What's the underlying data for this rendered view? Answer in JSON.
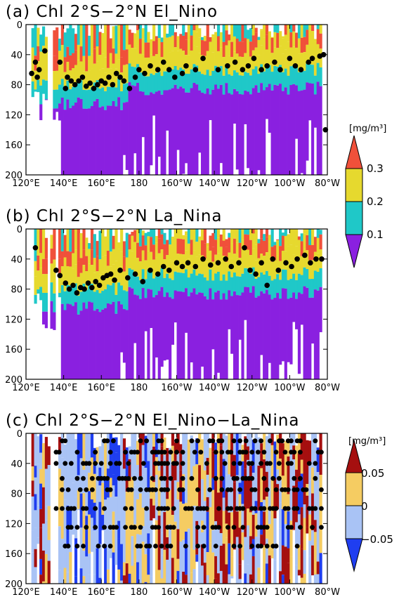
{
  "colors": {
    "panel_ab": {
      "lt_0.1": "#8a20e0",
      "0.1_0.2": "#1fc8c8",
      "0.2_0.3": "#e6d92e",
      "gt_0.3": "#f0503a"
    },
    "panel_c": {
      "lt_-0.05": "#1f3ef0",
      "-0.05_0": "#a9c3f5",
      "0_0.05": "#f5cc62",
      "gt_0.05": "#a50f0f"
    },
    "dots": "#000000"
  },
  "colorbars": [
    {
      "unit": "[mg/m³]",
      "labels": [
        "0.3",
        "0.2",
        "0.1"
      ]
    },
    {
      "unit": "[mg/m³]",
      "labels": [
        "0.05",
        "0",
        "−0.05"
      ]
    }
  ],
  "chart_data": [
    {
      "type": "heatmap",
      "title": "(a)  Chl 2°S−2°N El_Nino",
      "xlabel": "",
      "ylabel": "",
      "xticks": [
        "120°E",
        "140°E",
        "160°E",
        "180",
        "160°W",
        "140°W",
        "120°W",
        "100°W",
        "80°W"
      ],
      "yticks": [
        "0",
        "40",
        "80",
        "120",
        "160",
        "200"
      ],
      "xlim": [
        120,
        280
      ],
      "ylim": [
        200,
        0
      ],
      "levels": [
        0.1,
        0.2,
        0.3
      ],
      "chl_max_depth": [
        [
          123,
          65
        ],
        [
          125,
          50
        ],
        [
          126,
          70
        ],
        [
          127,
          60
        ],
        [
          130,
          35
        ],
        [
          138,
          50
        ],
        [
          141,
          85
        ],
        [
          142,
          70
        ],
        [
          144,
          75
        ],
        [
          146,
          80
        ],
        [
          148,
          75
        ],
        [
          150,
          70
        ],
        [
          152,
          82
        ],
        [
          154,
          78
        ],
        [
          156,
          85
        ],
        [
          158,
          80
        ],
        [
          160,
          75
        ],
        [
          162,
          78
        ],
        [
          164,
          70
        ],
        [
          166,
          80
        ],
        [
          168,
          65
        ],
        [
          170,
          70
        ],
        [
          172,
          75
        ],
        [
          175,
          85
        ],
        [
          178,
          70
        ],
        [
          180,
          60
        ],
        [
          183,
          65
        ],
        [
          186,
          55
        ],
        [
          190,
          60
        ],
        [
          193,
          50
        ],
        [
          196,
          60
        ],
        [
          199,
          70
        ],
        [
          203,
          65
        ],
        [
          205,
          55
        ],
        [
          210,
          60
        ],
        [
          214,
          45
        ],
        [
          222,
          60
        ],
        [
          227,
          55
        ],
        [
          231,
          50
        ],
        [
          235,
          60
        ],
        [
          238,
          55
        ],
        [
          241,
          45
        ],
        [
          245,
          60
        ],
        [
          248,
          55
        ],
        [
          252,
          50
        ],
        [
          255,
          60
        ],
        [
          260,
          45
        ],
        [
          263,
          55
        ],
        [
          266,
          60
        ],
        [
          270,
          50
        ],
        [
          272,
          45
        ],
        [
          276,
          42
        ],
        [
          278,
          40
        ],
        [
          279,
          140
        ]
      ]
    },
    {
      "type": "heatmap",
      "title": "(b)  Chl 2°S−2°N La_Nina",
      "xlabel": "",
      "ylabel": "",
      "xticks": [
        "120°E",
        "140°E",
        "160°E",
        "180",
        "160°W",
        "140°W",
        "120°W",
        "100°W",
        "80°W"
      ],
      "yticks": [
        "0",
        "40",
        "80",
        "120",
        "160",
        "200"
      ],
      "xlim": [
        120,
        280
      ],
      "ylim": [
        200,
        0
      ],
      "levels": [
        0.1,
        0.2,
        0.3
      ],
      "chl_max_depth": [
        [
          125,
          25
        ],
        [
          136,
          55
        ],
        [
          138,
          62
        ],
        [
          141,
          72
        ],
        [
          143,
          80
        ],
        [
          145,
          75
        ],
        [
          147,
          85
        ],
        [
          149,
          78
        ],
        [
          151,
          80
        ],
        [
          153,
          72
        ],
        [
          155,
          78
        ],
        [
          157,
          70
        ],
        [
          159,
          75
        ],
        [
          161,
          65
        ],
        [
          163,
          62
        ],
        [
          165,
          60
        ],
        [
          167,
          68
        ],
        [
          170,
          55
        ],
        [
          174,
          65
        ],
        [
          178,
          60
        ],
        [
          182,
          70
        ],
        [
          186,
          55
        ],
        [
          190,
          60
        ],
        [
          193,
          50
        ],
        [
          196,
          55
        ],
        [
          200,
          45
        ],
        [
          203,
          50
        ],
        [
          206,
          45
        ],
        [
          210,
          50
        ],
        [
          214,
          40
        ],
        [
          218,
          48
        ],
        [
          222,
          45
        ],
        [
          226,
          40
        ],
        [
          229,
          50
        ],
        [
          233,
          45
        ],
        [
          236,
          25
        ],
        [
          239,
          55
        ],
        [
          242,
          60
        ],
        [
          245,
          45
        ],
        [
          248,
          75
        ],
        [
          251,
          40
        ],
        [
          254,
          55
        ],
        [
          258,
          45
        ],
        [
          261,
          50
        ],
        [
          264,
          40
        ],
        [
          268,
          35
        ],
        [
          271,
          45
        ],
        [
          274,
          40
        ],
        [
          277,
          40
        ]
      ]
    },
    {
      "type": "heatmap",
      "title": "(c)  Chl 2°S−2°N El_Nino−La_Nina",
      "xlabel": "",
      "ylabel": "",
      "xticks": [
        "120°E",
        "140°E",
        "160°E",
        "180",
        "160°W",
        "140°W",
        "120°W",
        "100°W",
        "80°W"
      ],
      "yticks": [
        "0",
        "40",
        "80",
        "120",
        "160",
        "200"
      ],
      "xlim": [
        120,
        280
      ],
      "ylim": [
        200,
        0
      ],
      "levels": [
        -0.05,
        0,
        0.05
      ],
      "significant_depths": [
        10,
        25,
        40,
        60,
        75,
        100,
        125,
        150
      ]
    }
  ]
}
